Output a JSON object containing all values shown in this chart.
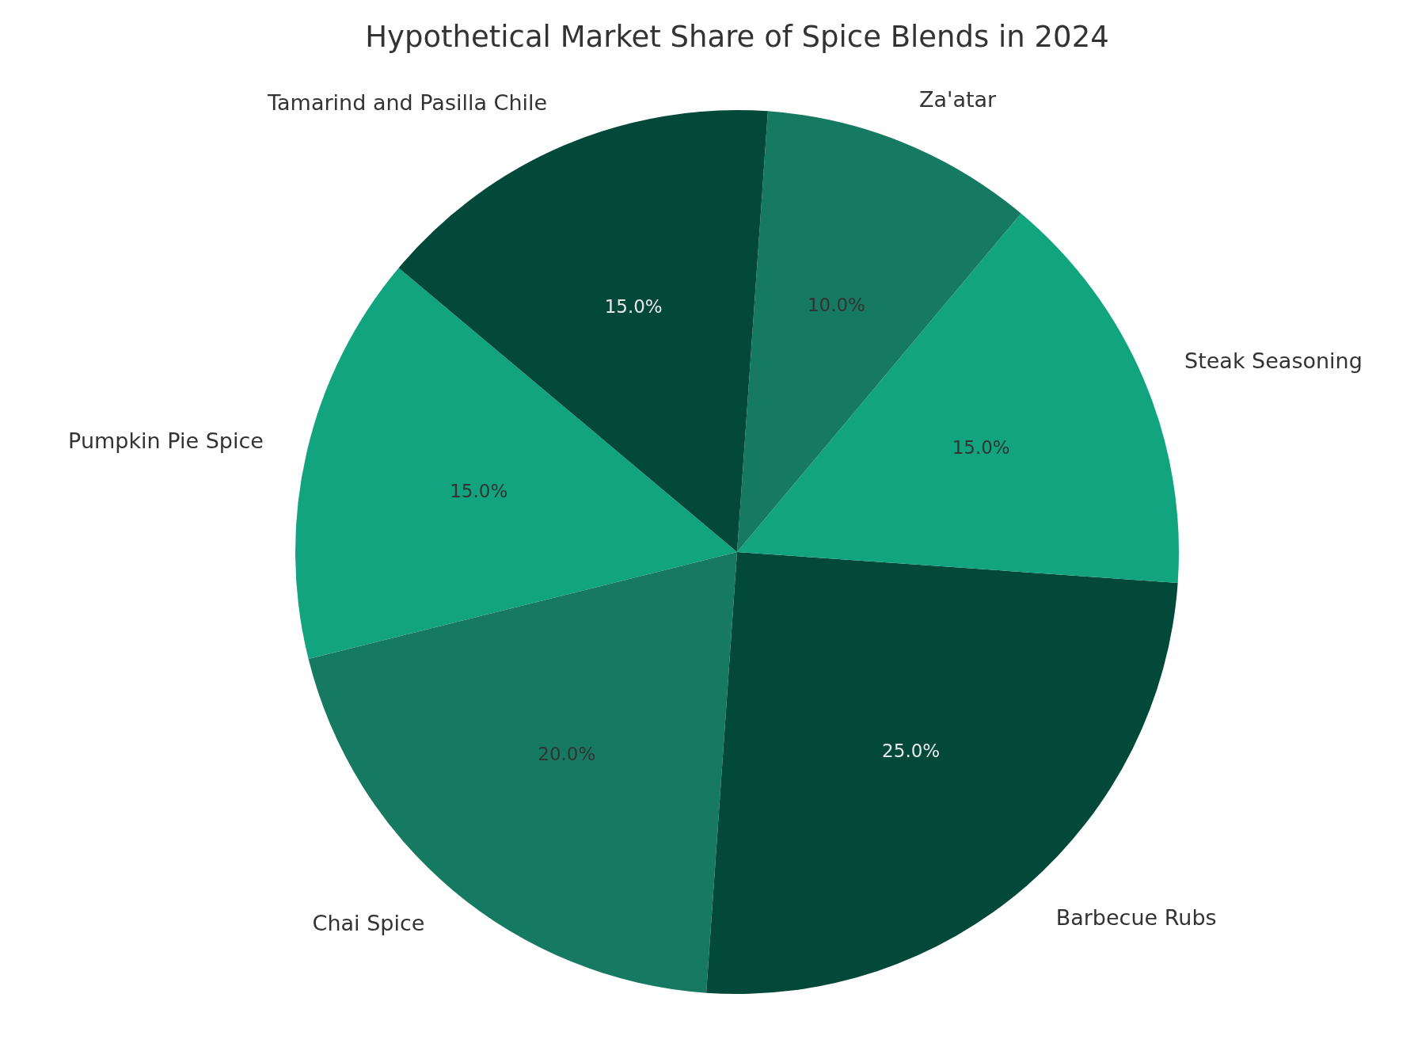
{
  "chart_data": {
    "type": "pie",
    "title": "Hypothetical Market Share of Spice Blends in 2024",
    "categories": [
      "Pumpkin Pie Spice",
      "Chai Spice",
      "Barbecue Rubs",
      "Steak Seasoning",
      "Za'atar",
      "Tamarind and Pasilla Chile"
    ],
    "values": [
      15,
      20,
      25,
      15,
      10,
      15
    ],
    "colors": [
      "#12a37f",
      "#167a62",
      "#03493a",
      "#12a37f",
      "#167a62",
      "#03493a"
    ],
    "value_labels": [
      "15.0%",
      "20.0%",
      "25.0%",
      "15.0%",
      "10.0%",
      "15.0%"
    ]
  }
}
